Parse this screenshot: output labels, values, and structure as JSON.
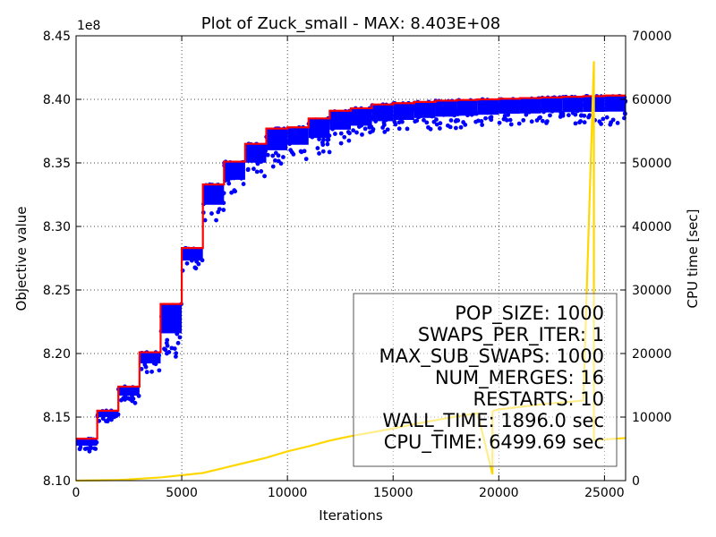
{
  "chart_data": {
    "type": "line",
    "title": "Plot of Zuck_small - MAX: 8.403E+08",
    "xlabel": "Iterations",
    "ylabel": "Objective value",
    "y2label": "CPU time [sec]",
    "y_multiplier_label": "1e8",
    "xlim": [
      0,
      26000
    ],
    "ylim": [
      810000000,
      845000000
    ],
    "y2lim": [
      0,
      70000
    ],
    "x_ticks": [
      0,
      5000,
      10000,
      15000,
      20000,
      25000
    ],
    "y_ticks": [
      8.1,
      8.15,
      8.2,
      8.25,
      8.3,
      8.35,
      8.4,
      8.45
    ],
    "y_tick_labels": [
      "8.10",
      "8.15",
      "8.20",
      "8.25",
      "8.30",
      "8.35",
      "8.40",
      "8.45"
    ],
    "y2_ticks": [
      0,
      10000,
      20000,
      30000,
      40000,
      50000,
      60000,
      70000
    ],
    "grid": true,
    "series": [
      {
        "role": "best objective",
        "color": "#ff0000",
        "style": "step",
        "axis": "left",
        "x": [
          0,
          1000,
          2000,
          3000,
          4000,
          5000,
          6000,
          7000,
          8000,
          9000,
          10000,
          11000,
          12000,
          13000,
          14000,
          15000,
          16000,
          17000,
          18000,
          19000,
          20000,
          21000,
          22000,
          23000,
          24000,
          25000,
          26000
        ],
        "values": [
          813300000,
          815500000,
          817400000,
          820100000,
          823900000,
          828300000,
          833300000,
          835100000,
          836500000,
          837700000,
          837800000,
          838500000,
          839100000,
          839300000,
          839600000,
          839700000,
          839800000,
          839900000,
          839950000,
          840000000,
          840050000,
          840100000,
          840150000,
          840200000,
          840250000,
          840300000,
          840300000
        ]
      },
      {
        "role": "population objective (scatter)",
        "color": "#0000ff",
        "style": "scatter-band",
        "axis": "left",
        "x": [
          0,
          1000,
          2000,
          3000,
          4000,
          5000,
          6000,
          7000,
          8000,
          9000,
          10000,
          11000,
          12000,
          13000,
          14000,
          15000,
          16000,
          17000,
          18000,
          19000,
          20000,
          21000,
          22000,
          23000,
          24000,
          25000,
          26000
        ],
        "upper": [
          813300000,
          815500000,
          817400000,
          820100000,
          823900000,
          828300000,
          833300000,
          835100000,
          836500000,
          837700000,
          837800000,
          838500000,
          839100000,
          839300000,
          839600000,
          839700000,
          839800000,
          839900000,
          839950000,
          840000000,
          840050000,
          840100000,
          840150000,
          840200000,
          840250000,
          840300000,
          840300000
        ],
        "lower": [
          812300000,
          814600000,
          816100000,
          818500000,
          819700000,
          826500000,
          830400000,
          832500000,
          833800000,
          834600000,
          835300000,
          835700000,
          836400000,
          836800000,
          837200000,
          837300000,
          837500000,
          837600000,
          837700000,
          837800000,
          837900000,
          837900000,
          838000000,
          838000000,
          838000000,
          838000000,
          838100000
        ]
      },
      {
        "role": "cpu time",
        "color": "#ffd700",
        "style": "line",
        "axis": "right",
        "x": [
          0,
          2000,
          4000,
          6000,
          7000,
          8000,
          9000,
          10000,
          11000,
          12000,
          13000,
          14000,
          15000,
          16000,
          17000,
          18000,
          19000,
          19700,
          19700,
          19750,
          20000,
          21000,
          22000,
          23000,
          24000,
          24500,
          24500,
          24550,
          24600,
          26000
        ],
        "values": [
          0,
          100,
          500,
          1200,
          2000,
          2800,
          3600,
          4600,
          5400,
          6300,
          7000,
          7600,
          8200,
          8900,
          9500,
          10100,
          10600,
          1000,
          10800,
          11000,
          11200,
          11600,
          12000,
          12300,
          12600,
          66000,
          6400,
          6400,
          6400,
          6700
        ]
      }
    ],
    "info_box": [
      "POP_SIZE: 1000",
      "SWAPS_PER_ITER: 1",
      "MAX_SUB_SWAPS: 1000",
      "NUM_MERGES: 16",
      "RESTARTS: 10",
      "WALL_TIME: 1896.0 sec",
      "CPU_TIME: 6499.69 sec"
    ],
    "info_box_placement": "bottom-right"
  }
}
